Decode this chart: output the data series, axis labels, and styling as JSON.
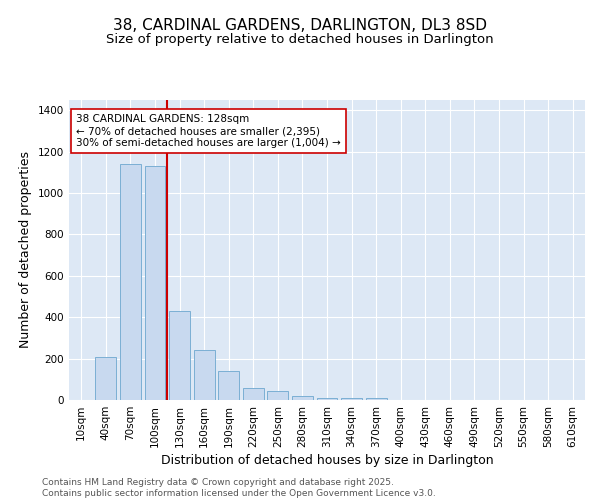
{
  "title_line1": "38, CARDINAL GARDENS, DARLINGTON, DL3 8SD",
  "title_line2": "Size of property relative to detached houses in Darlington",
  "xlabel": "Distribution of detached houses by size in Darlington",
  "ylabel": "Number of detached properties",
  "categories": [
    "10sqm",
    "40sqm",
    "70sqm",
    "100sqm",
    "130sqm",
    "160sqm",
    "190sqm",
    "220sqm",
    "250sqm",
    "280sqm",
    "310sqm",
    "340sqm",
    "370sqm",
    "400sqm",
    "430sqm",
    "460sqm",
    "490sqm",
    "520sqm",
    "550sqm",
    "580sqm",
    "610sqm"
  ],
  "values": [
    0,
    210,
    1140,
    1130,
    430,
    240,
    140,
    60,
    45,
    20,
    10,
    10,
    10,
    0,
    0,
    0,
    0,
    0,
    0,
    0,
    0
  ],
  "bar_color": "#c8d9ef",
  "bar_edge_color": "#7bafd4",
  "background_color": "#dde8f5",
  "red_line_x": 3.5,
  "red_line_color": "#cc0000",
  "annotation_text": "38 CARDINAL GARDENS: 128sqm\n← 70% of detached houses are smaller (2,395)\n30% of semi-detached houses are larger (1,004) →",
  "annotation_box_facecolor": "#ffffff",
  "annotation_box_edgecolor": "#cc0000",
  "ylim": [
    0,
    1450
  ],
  "yticks": [
    0,
    200,
    400,
    600,
    800,
    1000,
    1200,
    1400
  ],
  "footer_line1": "Contains HM Land Registry data © Crown copyright and database right 2025.",
  "footer_line2": "Contains public sector information licensed under the Open Government Licence v3.0.",
  "title_fontsize": 11,
  "subtitle_fontsize": 9.5,
  "axis_label_fontsize": 9,
  "tick_fontsize": 7.5,
  "annotation_fontsize": 7.5,
  "footer_fontsize": 6.5,
  "fig_width": 6.0,
  "fig_height": 5.0,
  "fig_dpi": 100
}
